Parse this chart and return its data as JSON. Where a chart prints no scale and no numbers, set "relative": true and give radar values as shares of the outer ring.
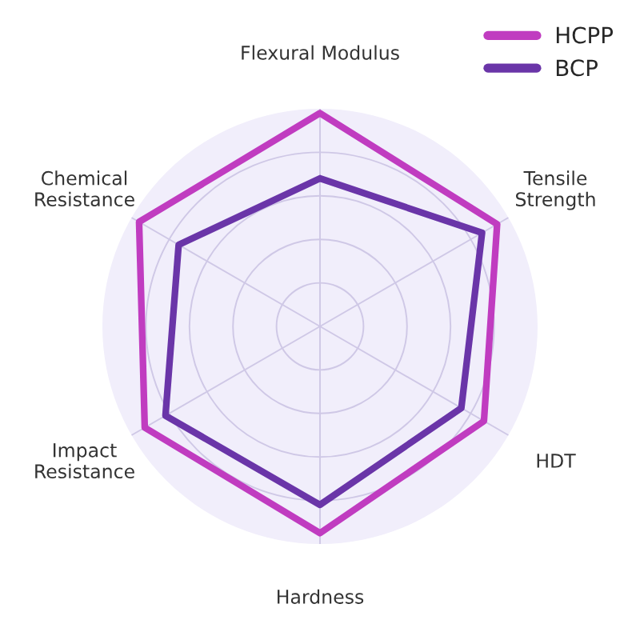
{
  "chart_data": {
    "type": "radar",
    "relative": true,
    "categories": [
      "Flexural Modulus",
      "Tensile\nStrength",
      "HDT",
      "Hardness",
      "Impact\nResistance",
      "Chemical\nResistance"
    ],
    "series": [
      {
        "name": "HCPP",
        "color": "#c03cc0",
        "values": [
          0.98,
          0.94,
          0.87,
          0.95,
          0.93,
          0.96
        ]
      },
      {
        "name": "BCP",
        "color": "#6a35a8",
        "values": [
          0.68,
          0.86,
          0.75,
          0.82,
          0.82,
          0.75
        ]
      }
    ],
    "grid": true,
    "legend": "top right",
    "marker": "none",
    "line_style": "solid"
  }
}
